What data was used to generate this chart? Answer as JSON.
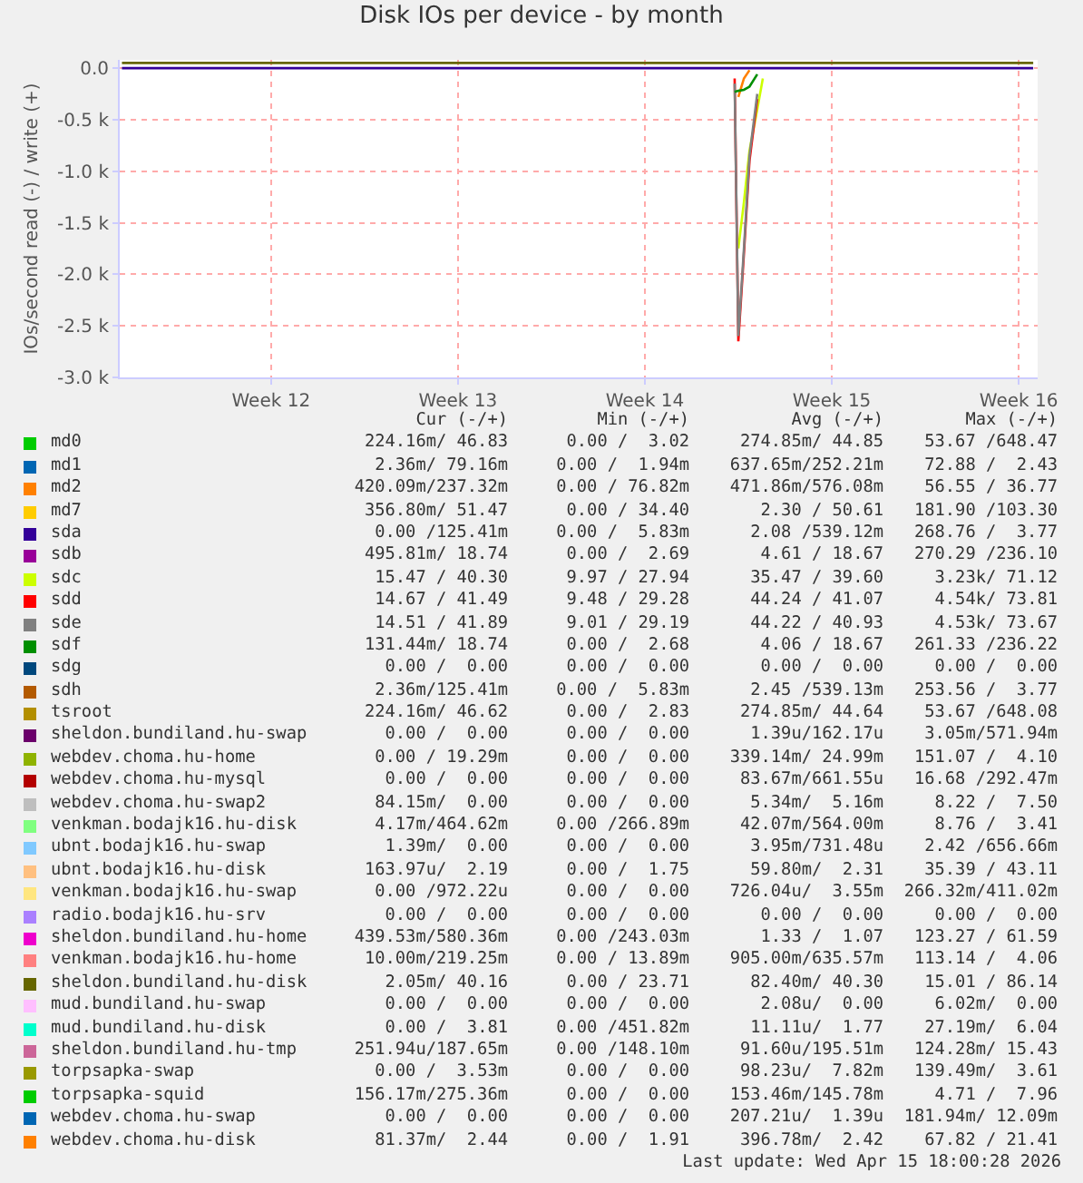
{
  "chart_data": {
    "type": "line",
    "title": "Disk IOs per device - by month",
    "ylabel": "IOs/second read (-) / write (+)",
    "x": [
      "2026-03-10T10:00",
      "2026-03-16",
      "2026-03-23",
      "2026-03-30",
      "2026-04-02T05:00",
      "2026-04-02T08:40",
      "2026-04-02T12:00",
      "2026-04-02T17:00",
      "2026-04-02T22:00",
      "2026-04-03T05:00",
      "2026-04-03T10:00",
      "2026-04-06",
      "2026-04-13",
      "2026-04-13T13:00"
    ],
    "xlim": [
      "2026-03-10T08:00",
      "2026-04-13T17:00"
    ],
    "xticks": [
      {
        "value": "2026-03-16",
        "label": "Week 12"
      },
      {
        "value": "2026-03-23",
        "label": "Week 13"
      },
      {
        "value": "2026-03-30",
        "label": "Week 14"
      },
      {
        "value": "2026-04-06",
        "label": "Week 15"
      },
      {
        "value": "2026-04-13",
        "label": "Week 16"
      }
    ],
    "ylim": [
      -3000,
      80
    ],
    "yticks": [
      {
        "value": -3000,
        "label": "-3.0 k"
      },
      {
        "value": -2500,
        "label": "-2.5 k"
      },
      {
        "value": -2000,
        "label": "-2.0 k"
      },
      {
        "value": -1500,
        "label": "-1.5 k"
      },
      {
        "value": -1000,
        "label": "-1.0 k"
      },
      {
        "value": -500,
        "label": "-0.5 k"
      },
      {
        "value": 0,
        "label": "0.0"
      }
    ],
    "grid": true,
    "legend": "bottom",
    "marker": "none",
    "line_style": "solid",
    "series": [
      {
        "name": "md0",
        "color": "#00cc00",
        "values": [
          null,
          null,
          null,
          null,
          null,
          null,
          null,
          null,
          null,
          null,
          null,
          null,
          null,
          null
        ]
      },
      {
        "name": "md1",
        "color": "#0066b3",
        "values": [
          null,
          null,
          null,
          null,
          null,
          null,
          null,
          null,
          null,
          null,
          null,
          null,
          null,
          null
        ]
      },
      {
        "name": "md2",
        "color": "#ff8000",
        "values": [
          null,
          null,
          null,
          null,
          null,
          null,
          -280,
          -100,
          -20,
          null,
          null,
          null,
          null,
          null
        ]
      },
      {
        "name": "md7",
        "color": "#ffcc00",
        "values": [
          null,
          null,
          null,
          null,
          null,
          null,
          null,
          null,
          null,
          null,
          null,
          null,
          null,
          null
        ]
      },
      {
        "name": "sda",
        "color": "#330099",
        "values": [
          0,
          0,
          0,
          0,
          0,
          0,
          0,
          0,
          0,
          0,
          0,
          0,
          0,
          0
        ]
      },
      {
        "name": "sdb",
        "color": "#990099",
        "values": [
          null,
          null,
          null,
          null,
          null,
          null,
          null,
          null,
          null,
          null,
          null,
          null,
          null,
          null
        ]
      },
      {
        "name": "sdc",
        "color": "#ccff00",
        "values": [
          null,
          null,
          null,
          null,
          null,
          null,
          -1750,
          -1300,
          -800,
          -400,
          -100,
          null,
          null,
          null
        ]
      },
      {
        "name": "sdd",
        "color": "#ff0000",
        "values": [
          null,
          null,
          null,
          null,
          null,
          -100,
          -2650,
          -1800,
          -900,
          -300,
          null,
          null,
          null,
          null
        ]
      },
      {
        "name": "sde",
        "color": "#808080",
        "values": [
          null,
          null,
          null,
          null,
          null,
          -150,
          -2600,
          -1750,
          -850,
          -250,
          null,
          null,
          null,
          null
        ]
      },
      {
        "name": "sdf",
        "color": "#008f00",
        "values": [
          null,
          null,
          null,
          null,
          null,
          -230,
          -220,
          -210,
          -180,
          -60,
          null,
          null,
          null,
          null
        ]
      },
      {
        "name": "sdg",
        "color": "#00487d",
        "values": [
          null,
          null,
          null,
          null,
          null,
          null,
          null,
          null,
          null,
          null,
          null,
          null,
          null,
          null
        ]
      },
      {
        "name": "sdh",
        "color": "#b35a00",
        "values": [
          null,
          null,
          null,
          null,
          null,
          null,
          null,
          null,
          null,
          null,
          null,
          null,
          null,
          null
        ]
      },
      {
        "name": "tsroot",
        "color": "#b38f00",
        "values": [
          null,
          null,
          null,
          null,
          null,
          null,
          null,
          null,
          null,
          null,
          null,
          null,
          null,
          null
        ]
      },
      {
        "name": "sheldon.bundiland.hu-swap",
        "color": "#6b006b",
        "values": [
          null,
          null,
          null,
          null,
          null,
          null,
          null,
          null,
          null,
          null,
          null,
          null,
          null,
          null
        ]
      },
      {
        "name": "webdev.choma.hu-home",
        "color": "#8fb300",
        "values": [
          null,
          null,
          null,
          null,
          null,
          null,
          null,
          null,
          null,
          null,
          null,
          null,
          null,
          null
        ]
      },
      {
        "name": "webdev.choma.hu-mysql",
        "color": "#b30000",
        "values": [
          null,
          null,
          null,
          null,
          null,
          null,
          null,
          null,
          null,
          null,
          null,
          null,
          null,
          null
        ]
      },
      {
        "name": "webdev.choma.hu-swap2",
        "color": "#bebebe",
        "values": [
          null,
          null,
          null,
          null,
          null,
          null,
          null,
          null,
          null,
          null,
          null,
          null,
          null,
          null
        ]
      },
      {
        "name": "venkman.bodajk16.hu-disk",
        "color": "#80ff80",
        "values": [
          null,
          null,
          null,
          null,
          null,
          null,
          null,
          null,
          null,
          null,
          null,
          null,
          null,
          null
        ]
      },
      {
        "name": "ubnt.bodajk16.hu-swap",
        "color": "#80c9ff",
        "values": [
          null,
          null,
          null,
          null,
          null,
          null,
          null,
          null,
          null,
          null,
          null,
          null,
          null,
          null
        ]
      },
      {
        "name": "ubnt.bodajk16.hu-disk",
        "color": "#ffc080",
        "values": [
          null,
          null,
          null,
          null,
          null,
          null,
          null,
          null,
          null,
          null,
          null,
          null,
          null,
          null
        ]
      },
      {
        "name": "venkman.bodajk16.hu-swap",
        "color": "#ffe680",
        "values": [
          null,
          null,
          null,
          null,
          null,
          null,
          null,
          null,
          null,
          null,
          null,
          null,
          null,
          null
        ]
      },
      {
        "name": "radio.bodajk16.hu-srv",
        "color": "#aa80ff",
        "values": [
          null,
          null,
          null,
          null,
          null,
          null,
          null,
          null,
          null,
          null,
          null,
          null,
          null,
          null
        ]
      },
      {
        "name": "sheldon.bundiland.hu-home",
        "color": "#ee00cc",
        "values": [
          null,
          null,
          null,
          null,
          null,
          null,
          null,
          null,
          null,
          null,
          null,
          null,
          null,
          null
        ]
      },
      {
        "name": "venkman.bodajk16.hu-home",
        "color": "#ff8080",
        "values": [
          null,
          null,
          null,
          null,
          null,
          null,
          null,
          null,
          null,
          null,
          null,
          null,
          null,
          null
        ]
      },
      {
        "name": "sheldon.bundiland.hu-disk",
        "color": "#666600",
        "values": [
          50,
          50,
          50,
          50,
          50,
          50,
          50,
          50,
          50,
          50,
          50,
          50,
          50,
          50
        ]
      },
      {
        "name": "mud.bundiland.hu-swap",
        "color": "#ffbfff",
        "values": [
          null,
          null,
          null,
          null,
          null,
          null,
          null,
          null,
          null,
          null,
          null,
          null,
          null,
          null
        ]
      },
      {
        "name": "mud.bundiland.hu-disk",
        "color": "#00ffcc",
        "values": [
          null,
          null,
          null,
          null,
          null,
          null,
          null,
          null,
          null,
          null,
          null,
          null,
          null,
          null
        ]
      },
      {
        "name": "sheldon.bundiland.hu-tmp",
        "color": "#cc6699",
        "values": [
          null,
          null,
          null,
          null,
          null,
          null,
          null,
          null,
          null,
          null,
          null,
          null,
          null,
          null
        ]
      },
      {
        "name": "torpsapka-swap",
        "color": "#999900",
        "values": [
          null,
          null,
          null,
          null,
          null,
          null,
          null,
          null,
          null,
          null,
          null,
          null,
          null,
          null
        ]
      },
      {
        "name": "torpsapka-squid",
        "color": "#00cc00",
        "values": [
          null,
          null,
          null,
          null,
          null,
          null,
          null,
          null,
          null,
          null,
          null,
          null,
          null,
          null
        ]
      },
      {
        "name": "webdev.choma.hu-swap",
        "color": "#0066b3",
        "values": [
          null,
          null,
          null,
          null,
          null,
          null,
          null,
          null,
          null,
          null,
          null,
          null,
          null,
          null
        ]
      },
      {
        "name": "webdev.choma.hu-disk",
        "color": "#ff8000",
        "values": [
          null,
          null,
          null,
          null,
          null,
          null,
          null,
          null,
          null,
          null,
          null,
          null,
          null,
          null
        ]
      }
    ],
    "annotations": [
      "Cur (-/+)",
      "Min (-/+)",
      "Avg (-/+)",
      "Max (-/+)",
      "224.16m/ 46.83",
      "0.00 /  3.02",
      "274.85m/ 44.85",
      "53.67 /648.47",
      "2.36m/ 79.16m",
      "0.00 /  1.94m",
      "637.65m/252.21m",
      "72.88 /  2.43",
      "420.09m/237.32m",
      "0.00 / 76.82m",
      "471.86m/576.08m",
      "56.55 / 36.77",
      "356.80m/ 51.47",
      "0.00 / 34.40",
      "2.30 / 50.61",
      "181.90 /103.30",
      "0.00 /125.41m",
      "0.00 /  5.83m",
      "2.08 /539.12m",
      "268.76 /  3.77",
      "495.81m/ 18.74",
      "0.00 /  2.69",
      "4.61 / 18.67",
      "270.29 /236.10",
      "15.47 / 40.30",
      "9.97 / 27.94",
      "35.47 / 39.60",
      "3.23k/ 71.12",
      "14.67 / 41.49",
      "9.48 / 29.28",
      "44.24 / 41.07",
      "4.54k/ 73.81",
      "14.51 / 41.89",
      "9.01 / 29.19",
      "44.22 / 40.93",
      "4.53k/ 73.67",
      "131.44m/ 18.74",
      "0.00 /  2.68",
      "4.06 / 18.67",
      "261.33 /236.22",
      "0.00 /  0.00",
      "0.00 /  0.00",
      "0.00 /  0.00",
      "0.00 /  0.00",
      "2.36m/125.41m",
      "0.00 /  5.83m",
      "2.45 /539.13m",
      "253.56 /  3.77",
      "224.16m/ 46.62",
      "0.00 /  2.83",
      "274.85m/ 44.64",
      "53.67 /648.08",
      "0.00 /  0.00",
      "0.00 /  0.00",
      "1.39u/162.17u",
      "3.05m/571.94m",
      "0.00 / 19.29m",
      "0.00 /  0.00",
      "339.14m/ 24.99m",
      "151.07 /  4.10",
      "0.00 /  0.00",
      "0.00 /  0.00",
      "83.67m/661.55u",
      "16.68 /292.47m",
      "84.15m/  0.00",
      "0.00 /  0.00",
      "5.34m/  5.16m",
      "8.22 /  7.50",
      "4.17m/464.62m",
      "0.00 /266.89m",
      "42.07m/564.00m",
      "8.76 /  3.41",
      "1.39m/  0.00",
      "0.00 /  0.00",
      "3.95m/731.48u",
      "2.42 /656.66m",
      "163.97u/  2.19",
      "0.00 /  1.75",
      "59.80m/  2.31",
      "35.39 / 43.11",
      "0.00 /972.22u",
      "0.00 /  0.00",
      "726.04u/  3.55m",
      "266.32m/411.02m",
      "0.00 /  0.00",
      "0.00 /  0.00",
      "0.00 /  0.00",
      "0.00 /  0.00",
      "439.53m/580.36m",
      "0.00 /243.03m",
      "1.33 /  1.07",
      "123.27 / 61.59",
      "10.00m/219.25m",
      "0.00 / 13.89m",
      "905.00m/635.57m",
      "113.14 /  4.06",
      "2.05m/ 40.16",
      "0.00 / 23.71",
      "82.40m/ 40.30",
      "15.01 / 86.14",
      "0.00 /  0.00",
      "0.00 /  0.00",
      "2.08u/  0.00",
      "6.02m/  0.00",
      "0.00 /  3.81",
      "0.00 /451.82m",
      "11.11u/  1.77",
      "27.19m/  6.04",
      "251.94u/187.65m",
      "0.00 /148.10m",
      "91.60u/195.51m",
      "124.28m/ 15.43",
      "0.00 /  3.53m",
      "0.00 /  0.00",
      "98.23u/  7.82m",
      "139.49m/  3.61",
      "156.17m/275.36m",
      "0.00 /  0.00",
      "153.46m/145.78m",
      "4.71 /  7.96",
      "0.00 /  0.00",
      "0.00 /  0.00",
      "207.21u/  1.39u",
      "181.94m/ 12.09m",
      "81.37m/  2.44",
      "0.00 /  1.91",
      "396.78m/  2.42",
      "67.82 / 21.41",
      "Last update: Wed Apr 15 18:00:28 2026"
    ]
  }
}
